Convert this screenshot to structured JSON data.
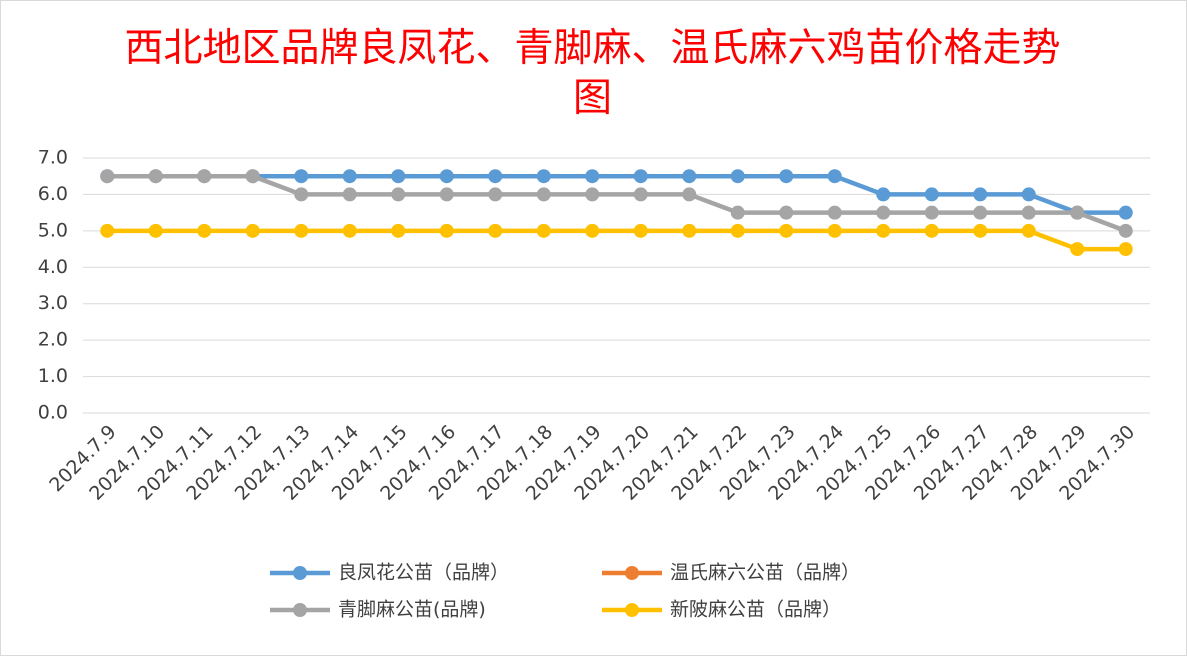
{
  "chart_data": {
    "type": "line",
    "title": "西北地区品牌良凤花、青脚麻、温氏麻六鸡苗价格走势图",
    "categories": [
      "2024.7.9",
      "2024.7.10",
      "2024.7.11",
      "2024.7.12",
      "2024.7.13",
      "2024.7.14",
      "2024.7.15",
      "2024.7.16",
      "2024.7.17",
      "2024.7.18",
      "2024.7.19",
      "2024.7.20",
      "2024.7.21",
      "2024.7.22",
      "2024.7.23",
      "2024.7.24",
      "2024.7.25",
      "2024.7.26",
      "2024.7.27",
      "2024.7.28",
      "2024.7.29",
      "2024.7.30"
    ],
    "series": [
      {
        "name": "良凤花公苗（品牌）",
        "color": "#5b9bd5",
        "values": [
          6.5,
          6.5,
          6.5,
          6.5,
          6.5,
          6.5,
          6.5,
          6.5,
          6.5,
          6.5,
          6.5,
          6.5,
          6.5,
          6.5,
          6.5,
          6.5,
          6.0,
          6.0,
          6.0,
          6.0,
          5.5,
          5.5
        ]
      },
      {
        "name": "温氏麻六公苗（品牌）",
        "color": "#ed7d31",
        "values": [
          null,
          null,
          null,
          null,
          null,
          null,
          null,
          null,
          null,
          null,
          null,
          null,
          null,
          null,
          null,
          null,
          null,
          null,
          null,
          null,
          null,
          null
        ]
      },
      {
        "name": "青脚麻公苗(品牌)",
        "color": "#a5a5a5",
        "values": [
          6.5,
          6.5,
          6.5,
          6.5,
          6.0,
          6.0,
          6.0,
          6.0,
          6.0,
          6.0,
          6.0,
          6.0,
          6.0,
          5.5,
          5.5,
          5.5,
          5.5,
          5.5,
          5.5,
          5.5,
          5.5,
          5.0
        ]
      },
      {
        "name": "新陂麻公苗（品牌）",
        "color": "#ffc000",
        "values": [
          5.0,
          5.0,
          5.0,
          5.0,
          5.0,
          5.0,
          5.0,
          5.0,
          5.0,
          5.0,
          5.0,
          5.0,
          5.0,
          5.0,
          5.0,
          5.0,
          5.0,
          5.0,
          5.0,
          5.0,
          4.5,
          4.5
        ]
      }
    ],
    "ylim": [
      0,
      7
    ],
    "yticks": [
      {
        "value": 0,
        "label": "0.0"
      },
      {
        "value": 1,
        "label": "1.0"
      },
      {
        "value": 2,
        "label": "2.0"
      },
      {
        "value": 3,
        "label": "3.0"
      },
      {
        "value": 4,
        "label": "4.0"
      },
      {
        "value": 5,
        "label": "5.0"
      },
      {
        "value": 6,
        "label": "6.0"
      },
      {
        "value": 7,
        "label": "7.0"
      }
    ],
    "grid": true
  }
}
